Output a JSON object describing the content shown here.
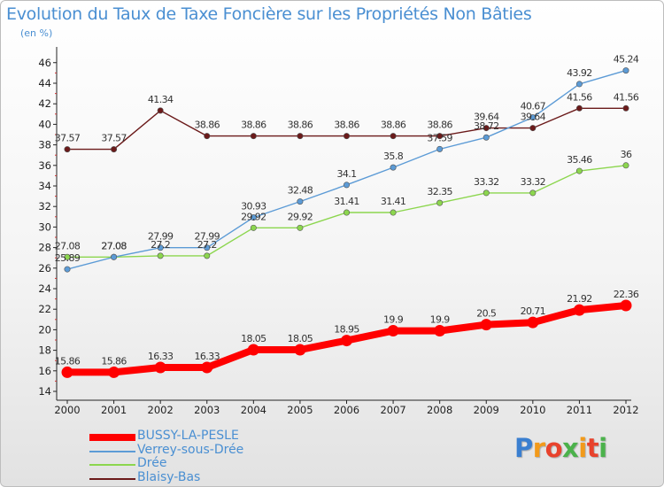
{
  "title": "Evolution du Taux de Taxe Foncière sur les Propriétés Non Bâties",
  "unit_label": "(en %)",
  "logo": "Proxiti",
  "colors": {
    "title": "#4a8fd2",
    "bussy": "#ff0000",
    "verrey": "#5c9bd6",
    "dree": "#8cd64e",
    "blaisy": "#6b1a1a"
  },
  "chart_data": {
    "type": "line",
    "x": [
      "2000",
      "2001",
      "2002",
      "2003",
      "2004",
      "2005",
      "2006",
      "2007",
      "2008",
      "2009",
      "2010",
      "2011",
      "2012"
    ],
    "ylim": [
      14,
      46
    ],
    "yticks": [
      14,
      16,
      18,
      20,
      22,
      24,
      26,
      28,
      30,
      32,
      34,
      36,
      38,
      40,
      42,
      44,
      46
    ],
    "grid": false,
    "legend": "bottom-left",
    "series": [
      {
        "name": "BUSSY-LA-PESLE",
        "key": "bussy",
        "values": [
          15.86,
          15.86,
          16.33,
          16.33,
          18.05,
          18.05,
          18.95,
          19.9,
          19.9,
          20.5,
          20.71,
          21.92,
          22.36
        ],
        "labels": [
          "15.86",
          "15.86",
          "16.33",
          "16.33",
          "18.05",
          "18.05",
          "18.95",
          "19.9",
          "19.9",
          "20.5",
          "20.71",
          "21.92",
          "22.36"
        ]
      },
      {
        "name": "Verrey-sous-Drée",
        "key": "verrey",
        "values": [
          25.89,
          27.08,
          27.99,
          27.99,
          30.93,
          32.48,
          34.1,
          35.8,
          37.59,
          38.72,
          40.67,
          43.92,
          45.24
        ],
        "labels": [
          "25.89",
          "27.08",
          "27.99",
          "27.99",
          "30.93",
          "32.48",
          "34.1",
          "35.8",
          "37.59",
          "38.72",
          "40.67",
          "43.92",
          "45.24"
        ]
      },
      {
        "name": "Drée",
        "key": "dree",
        "values": [
          27.08,
          27.08,
          27.2,
          27.2,
          29.92,
          29.92,
          31.41,
          31.41,
          32.35,
          33.32,
          33.32,
          35.46,
          36
        ],
        "labels": [
          "27.08",
          "27.08",
          "27.2",
          "27.2",
          "29.92",
          "29.92",
          "31.41",
          "31.41",
          "32.35",
          "33.32",
          "33.32",
          "35.46",
          "36"
        ]
      },
      {
        "name": "Blaisy-Bas",
        "key": "blaisy",
        "values": [
          37.57,
          37.57,
          41.34,
          38.86,
          38.86,
          38.86,
          38.86,
          38.86,
          38.86,
          39.64,
          39.64,
          41.56,
          41.56
        ],
        "labels": [
          "37.57",
          "37.57",
          "41.34",
          "38.86",
          "38.86",
          "38.86",
          "38.86",
          "38.86",
          "38.86",
          "39.64",
          "39.64",
          "41.56",
          "41.56"
        ]
      }
    ]
  },
  "legend_items": [
    {
      "label": "BUSSY-LA-PESLE",
      "key": "bussy"
    },
    {
      "label": "Verrey-sous-Drée",
      "key": "verrey"
    },
    {
      "label": "Drée",
      "key": "dree"
    },
    {
      "label": "Blaisy-Bas",
      "key": "blaisy"
    }
  ]
}
